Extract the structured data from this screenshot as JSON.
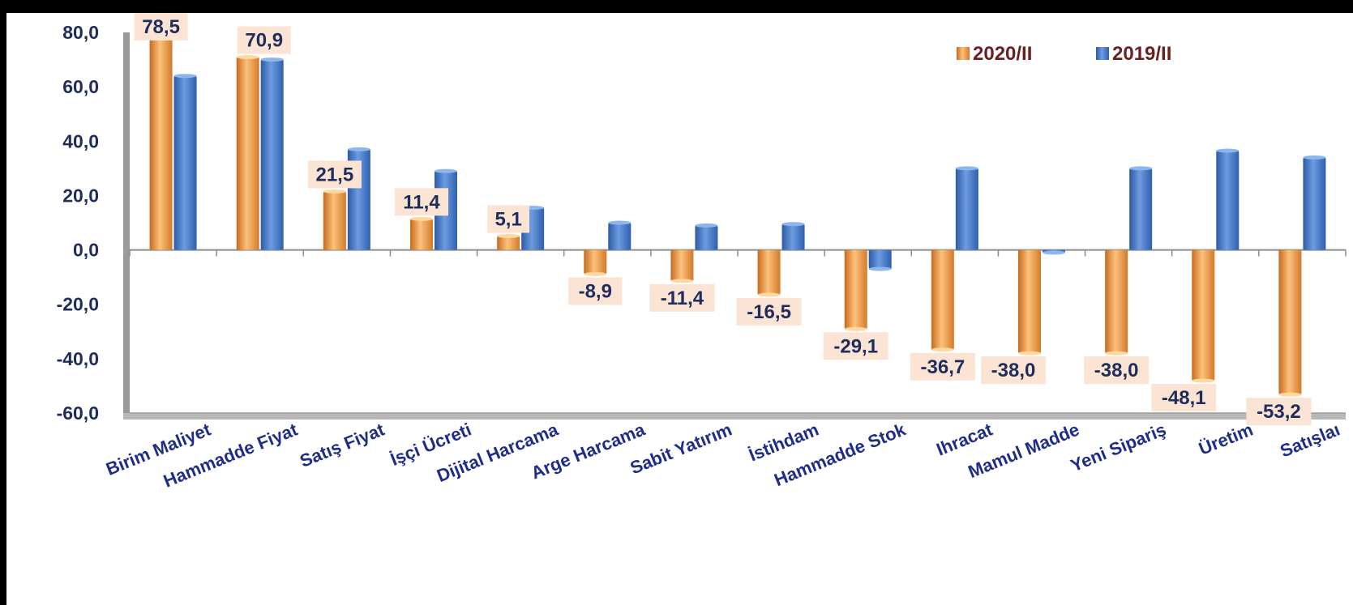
{
  "chart_data": {
    "type": "bar",
    "categories": [
      "Birim Maliyet",
      "Hammadde Fiyat",
      "Satış Fiyat",
      "İşçi Ücreti",
      "Dijital Harcama",
      "Arge Harcama",
      "Sabit Yatırım",
      "İstihdam",
      "Hammadde Stok",
      "Ihracat",
      "Mamul Madde",
      "Yeni Sipariş",
      "Üretim",
      "Satışlaı"
    ],
    "series": [
      {
        "name": "2020/II",
        "color": "#f0a040",
        "values": [
          78.5,
          70.9,
          21.5,
          11.4,
          5.1,
          -8.9,
          -11.4,
          -16.5,
          -29.1,
          -36.7,
          -38.0,
          -38.0,
          -48.1,
          -53.2
        ]
      },
      {
        "name": "2019/II",
        "color": "#3f74c4",
        "values": [
          64.0,
          70.0,
          37.0,
          29.0,
          15.5,
          10.0,
          9.0,
          9.5,
          -7.0,
          30.0,
          -1.0,
          30.0,
          36.5,
          34.0
        ]
      }
    ],
    "data_labels": [
      "78,5",
      "70,9",
      "21,5",
      "11,4",
      "5,1",
      "-8,9",
      "-11,4",
      "-16,5",
      "-29,1",
      "-36,7",
      "-38,0",
      "-38,0",
      "-48,1",
      "-53,2"
    ],
    "y_tick_labels": [
      "80,0",
      "60,0",
      "40,0",
      "20,0",
      "0,0",
      "-20,0",
      "-40,0",
      "-60,0"
    ],
    "ylim": [
      -60,
      80
    ],
    "legend_position": "top-right",
    "grid": false
  }
}
